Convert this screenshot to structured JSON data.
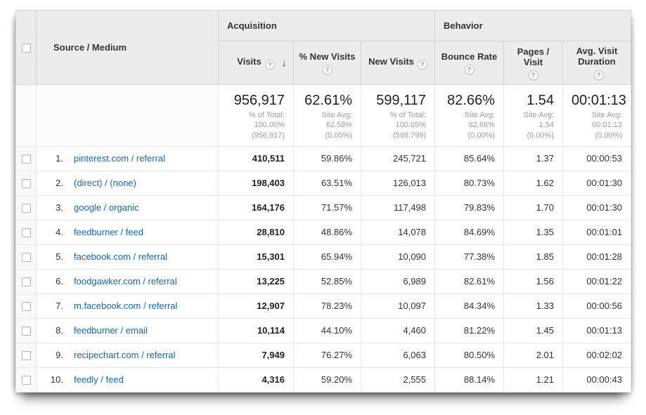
{
  "colors": {
    "link_blue": "#1a66b4",
    "header_bg": "#ececec",
    "border_gray": "#d5d5d5",
    "subtext_gray": "#9b9b9b",
    "text_dark": "#333333"
  },
  "icons": {
    "help": "?",
    "sort_desc": "↓"
  },
  "header": {
    "source_medium_label": "Source / Medium",
    "groups": [
      {
        "label": "Acquisition"
      },
      {
        "label": "Behavior"
      }
    ],
    "metric_columns": [
      {
        "label": "Visits"
      },
      {
        "label": "% New Visits"
      },
      {
        "label": "New Visits"
      },
      {
        "label": "Bounce Rate"
      },
      {
        "label": "Pages / Visit"
      },
      {
        "label": "Avg. Visit Duration"
      }
    ]
  },
  "summary": [
    {
      "value": "956,917",
      "sub": [
        "% of Total:",
        "100.00%",
        "(956,917)"
      ]
    },
    {
      "value": "62.61%",
      "sub": [
        "Site Avg:",
        "62.58%",
        "(0.05%)"
      ]
    },
    {
      "value": "599,117",
      "sub": [
        "% of Total:",
        "100.05%",
        "(598,799)"
      ]
    },
    {
      "value": "82.66%",
      "sub": [
        "Site Avg:",
        "82.66%",
        "(0.00%)"
      ]
    },
    {
      "value": "1.54",
      "sub": [
        "Site Avg:",
        "1.54 (0.00%)"
      ]
    },
    {
      "value": "00:01:13",
      "sub": [
        "Site Avg:",
        "00:01:13",
        "(0.00%)"
      ]
    }
  ],
  "rows": [
    {
      "rank": "1.",
      "source": "pinterest.com / referral",
      "metrics": [
        "410,511",
        "59.86%",
        "245,721",
        "85.64%",
        "1.37",
        "00:00:53"
      ]
    },
    {
      "rank": "2.",
      "source": "(direct) / (none)",
      "metrics": [
        "198,403",
        "63.51%",
        "126,013",
        "80.73%",
        "1.62",
        "00:01:30"
      ]
    },
    {
      "rank": "3.",
      "source": "google / organic",
      "metrics": [
        "164,176",
        "71.57%",
        "117,498",
        "79.83%",
        "1.70",
        "00:01:30"
      ]
    },
    {
      "rank": "4.",
      "source": "feedburner / feed",
      "metrics": [
        "28,810",
        "48.86%",
        "14,078",
        "84.69%",
        "1.35",
        "00:01:01"
      ]
    },
    {
      "rank": "5.",
      "source": "facebook.com / referral",
      "metrics": [
        "15,301",
        "65.94%",
        "10,090",
        "77.38%",
        "1.85",
        "00:01:28"
      ]
    },
    {
      "rank": "6.",
      "source": "foodgawker.com / referral",
      "metrics": [
        "13,225",
        "52.85%",
        "6,989",
        "82.61%",
        "1.56",
        "00:01:22"
      ]
    },
    {
      "rank": "7.",
      "source": "m.facebook.com / referral",
      "metrics": [
        "12,907",
        "78.23%",
        "10,097",
        "84.34%",
        "1.33",
        "00:00:56"
      ]
    },
    {
      "rank": "8.",
      "source": "feedburner / email",
      "metrics": [
        "10,114",
        "44.10%",
        "4,460",
        "81.22%",
        "1.45",
        "00:01:13"
      ]
    },
    {
      "rank": "9.",
      "source": "recipechart.com / referral",
      "metrics": [
        "7,949",
        "76.27%",
        "6,063",
        "80.50%",
        "2.01",
        "00:02:02"
      ]
    },
    {
      "rank": "10.",
      "source": "feedly / feed",
      "metrics": [
        "4,316",
        "59.20%",
        "2,555",
        "88.14%",
        "1.21",
        "00:00:43"
      ]
    }
  ]
}
